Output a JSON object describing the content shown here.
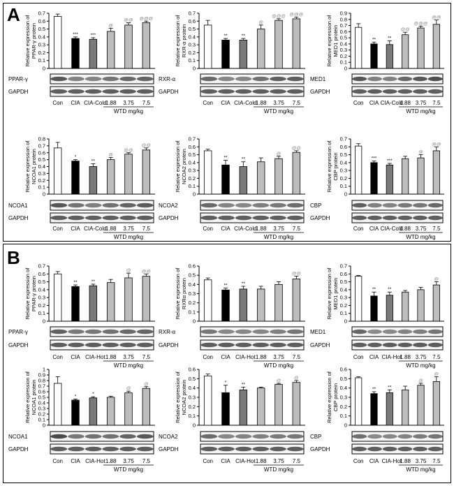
{
  "panels": [
    {
      "letter": "A",
      "treatment_label": "CIA-Cold",
      "charts": [
        {
          "protein": "PPAR-γ",
          "ylabel": "Relative expression of PPAR-γ protein",
          "ylim": [
            0,
            0.7
          ],
          "yticks": [
            "0",
            "0.1",
            "0.2",
            "0.3",
            "0.4",
            "0.5",
            "0.6",
            "0.7"
          ],
          "values": [
            0.66,
            0.38,
            0.37,
            0.47,
            0.55,
            0.58
          ],
          "errors": [
            0.03,
            0.02,
            0.02,
            0.04,
            0.03,
            0.02
          ],
          "marks": [
            "",
            "***",
            "***",
            "@",
            "@@",
            "@@@"
          ]
        },
        {
          "protein": "RXR-α",
          "ylabel": "Relative expression of RXR-α protein",
          "ylim": [
            0,
            0.7
          ],
          "yticks": [
            "0",
            "0.1",
            "0.2",
            "0.3",
            "0.4",
            "0.5",
            "0.6",
            "0.7"
          ],
          "values": [
            0.55,
            0.36,
            0.36,
            0.5,
            0.61,
            0.63
          ],
          "errors": [
            0.06,
            0.02,
            0.02,
            0.05,
            0.02,
            0.02
          ],
          "marks": [
            "",
            "**",
            "**",
            "@",
            "@@@",
            "@@@"
          ]
        },
        {
          "protein": "MED1",
          "ylabel": "Relative expression of MED1 protein",
          "ylim": [
            0,
            0.9
          ],
          "yticks": [
            "0",
            "0.1",
            "0.2",
            "0.3",
            "0.4",
            "0.5",
            "0.6",
            "0.7",
            "0.8",
            "0.9"
          ],
          "values": [
            0.67,
            0.4,
            0.39,
            0.55,
            0.66,
            0.72
          ],
          "errors": [
            0.06,
            0.03,
            0.06,
            0.04,
            0.03,
            0.07
          ],
          "marks": [
            "",
            "**",
            "**",
            "@@",
            "@@@",
            "@@"
          ]
        },
        {
          "protein": "NCOA1",
          "ylabel": "Relative expression of NCOA1 protein",
          "ylim": [
            0,
            0.8
          ],
          "yticks": [
            "0",
            "0.1",
            "0.2",
            "0.3",
            "0.4",
            "0.5",
            "0.6",
            "0.7",
            "0.8"
          ],
          "values": [
            0.67,
            0.48,
            0.4,
            0.5,
            0.58,
            0.64
          ],
          "errors": [
            0.08,
            0.02,
            0.04,
            0.03,
            0.02,
            0.03
          ],
          "marks": [
            "",
            "*",
            "**",
            "@",
            "@@",
            "@@"
          ]
        },
        {
          "protein": "NCOA2",
          "ylabel": "Relative expression of NCOA2 protein",
          "ylim": [
            0,
            0.7
          ],
          "yticks": [
            "0",
            "0.1",
            "0.2",
            "0.3",
            "0.4",
            "0.5",
            "0.6",
            "0.7"
          ],
          "values": [
            0.55,
            0.37,
            0.35,
            0.41,
            0.45,
            0.53
          ],
          "errors": [
            0.02,
            0.06,
            0.06,
            0.05,
            0.03,
            0.02
          ],
          "marks": [
            "",
            "**",
            "**",
            "",
            "@",
            "@@"
          ]
        },
        {
          "protein": "CBP",
          "ylabel": "Relative expression of CBP protein",
          "ylim": [
            0,
            0.7
          ],
          "yticks": [
            "0",
            "0.1",
            "0.2",
            "0.3",
            "0.4",
            "0.5",
            "0.6",
            "0.7"
          ],
          "values": [
            0.61,
            0.4,
            0.37,
            0.45,
            0.46,
            0.55
          ],
          "errors": [
            0.03,
            0.02,
            0.02,
            0.03,
            0.04,
            0.05
          ],
          "marks": [
            "",
            "***",
            "***",
            "",
            "@",
            "@@"
          ]
        }
      ]
    },
    {
      "letter": "B",
      "treatment_label": "CIA-Hot",
      "charts": [
        {
          "protein": "PPAR-γ",
          "ylabel": "Relative expression of PPAR-γ protein",
          "ylim": [
            0,
            0.7
          ],
          "yticks": [
            "0",
            "0.1",
            "0.2",
            "0.3",
            "0.4",
            "0.5",
            "0.6",
            "0.7"
          ],
          "values": [
            0.6,
            0.44,
            0.45,
            0.49,
            0.55,
            0.57
          ],
          "errors": [
            0.03,
            0.02,
            0.02,
            0.04,
            0.06,
            0.03
          ],
          "marks": [
            "",
            "**",
            "**",
            "",
            "@",
            "@@"
          ]
        },
        {
          "protein": "RXR-α",
          "ylabel": "Relative expression of RXRα protein",
          "ylim": [
            0,
            0.6
          ],
          "yticks": [
            "0",
            "0.1",
            "0.2",
            "0.3",
            "0.4",
            "0.5",
            "0.6"
          ],
          "values": [
            0.45,
            0.34,
            0.35,
            0.35,
            0.4,
            0.46
          ],
          "errors": [
            0.02,
            0.02,
            0.03,
            0.03,
            0.03,
            0.03
          ],
          "marks": [
            "",
            "**",
            "**",
            "",
            "",
            "@@"
          ]
        },
        {
          "protein": "MED1",
          "ylabel": "Relative expression of MED1 protein",
          "ylim": [
            0,
            0.7
          ],
          "yticks": [
            "0",
            "0.1",
            "0.2",
            "0.3",
            "0.4",
            "0.5",
            "0.6",
            "0.7"
          ],
          "values": [
            0.57,
            0.32,
            0.33,
            0.37,
            0.4,
            0.46
          ],
          "errors": [
            0.01,
            0.05,
            0.04,
            0.02,
            0.03,
            0.04
          ],
          "marks": [
            "",
            "**",
            "**",
            "",
            "",
            "@"
          ]
        },
        {
          "protein": "NCOA1",
          "ylabel": "Relative expression of NCOA1 protein",
          "ylim": [
            0,
            1
          ],
          "yticks": [
            "0",
            "0.1",
            "0.2",
            "0.3",
            "0.4",
            "0.5",
            "0.6",
            "0.7",
            "0.8",
            "0.9",
            "1"
          ],
          "values": [
            0.75,
            0.45,
            0.49,
            0.5,
            0.58,
            0.66
          ],
          "errors": [
            0.12,
            0.02,
            0.02,
            0.02,
            0.03,
            0.03
          ],
          "marks": [
            "",
            "*",
            "*",
            "",
            "@",
            "@"
          ]
        },
        {
          "protein": "NCOA2",
          "ylabel": "Relative expression of NCOA2 protein",
          "ylim": [
            0,
            0.6
          ],
          "yticks": [
            "0",
            "0.1",
            "0.2",
            "0.3",
            "0.4",
            "0.5",
            "0.6"
          ],
          "values": [
            0.53,
            0.35,
            0.38,
            0.4,
            0.44,
            0.46
          ],
          "errors": [
            0.02,
            0.08,
            0.03,
            0.01,
            0.01,
            0.02
          ],
          "marks": [
            "",
            "*",
            "**",
            "",
            "@",
            "@"
          ]
        },
        {
          "protein": "CBP",
          "ylabel": "Relative expression of CBP protein",
          "ylim": [
            0,
            0.6
          ],
          "yticks": [
            "0",
            "0.1",
            "0.2",
            "0.3",
            "0.4",
            "0.5",
            "0.6"
          ],
          "values": [
            0.51,
            0.34,
            0.35,
            0.38,
            0.43,
            0.47
          ],
          "errors": [
            0.01,
            0.02,
            0.03,
            0.04,
            0.02,
            0.05
          ],
          "marks": [
            "",
            "**",
            "**",
            "",
            "@",
            "@"
          ]
        }
      ]
    }
  ],
  "x_labels": {
    "con": "Con",
    "cia": "CIA",
    "doses": [
      "1.88",
      "3.75",
      "7.5"
    ],
    "group": "WTD mg/kg"
  },
  "gapdh_label": "GAPDH",
  "bar_colors": [
    "#ffffff",
    "#000000",
    "#7a7a7a",
    "#bdbdbd",
    "#bdbdbd",
    "#bdbdbd"
  ],
  "chart_data": [
    {
      "type": "bar",
      "title": "",
      "ylabel": "Relative expression of PPAR-γ protein",
      "categories": [
        "Con",
        "CIA",
        "CIA-Cold",
        "1.88",
        "3.75",
        "7.5"
      ],
      "values": [
        0.66,
        0.38,
        0.37,
        0.47,
        0.55,
        0.58
      ],
      "ylim": [
        0,
        0.7
      ]
    },
    {
      "type": "bar",
      "title": "",
      "ylabel": "Relative expression of RXR-α protein",
      "categories": [
        "Con",
        "CIA",
        "CIA-Cold",
        "1.88",
        "3.75",
        "7.5"
      ],
      "values": [
        0.55,
        0.36,
        0.36,
        0.5,
        0.61,
        0.63
      ],
      "ylim": [
        0,
        0.7
      ]
    },
    {
      "type": "bar",
      "title": "",
      "ylabel": "Relative expression of MED1 protein",
      "categories": [
        "Con",
        "CIA",
        "CIA-Cold",
        "1.88",
        "3.75",
        "7.5"
      ],
      "values": [
        0.67,
        0.4,
        0.39,
        0.55,
        0.66,
        0.72
      ],
      "ylim": [
        0,
        0.9
      ]
    },
    {
      "type": "bar",
      "title": "",
      "ylabel": "Relative expression of NCOA1 protein",
      "categories": [
        "Con",
        "CIA",
        "CIA-Cold",
        "1.88",
        "3.75",
        "7.5"
      ],
      "values": [
        0.67,
        0.48,
        0.4,
        0.5,
        0.58,
        0.64
      ],
      "ylim": [
        0,
        0.8
      ]
    },
    {
      "type": "bar",
      "title": "",
      "ylabel": "Relative expression of NCOA2 protein",
      "categories": [
        "Con",
        "CIA",
        "CIA-Cold",
        "1.88",
        "3.75",
        "7.5"
      ],
      "values": [
        0.55,
        0.37,
        0.35,
        0.41,
        0.45,
        0.53
      ],
      "ylim": [
        0,
        0.7
      ]
    },
    {
      "type": "bar",
      "title": "",
      "ylabel": "Relative expression of CBP protein",
      "categories": [
        "Con",
        "CIA",
        "CIA-Cold",
        "1.88",
        "3.75",
        "7.5"
      ],
      "values": [
        0.61,
        0.4,
        0.37,
        0.45,
        0.46,
        0.55
      ],
      "ylim": [
        0,
        0.7
      ]
    },
    {
      "type": "bar",
      "title": "",
      "ylabel": "Relative expression of PPAR-γ protein",
      "categories": [
        "Con",
        "CIA",
        "CIA-Hot",
        "1.88",
        "3.75",
        "7.5"
      ],
      "values": [
        0.6,
        0.44,
        0.45,
        0.49,
        0.55,
        0.57
      ],
      "ylim": [
        0,
        0.7
      ]
    },
    {
      "type": "bar",
      "title": "",
      "ylabel": "Relative expression of RXRα protein",
      "categories": [
        "Con",
        "CIA",
        "CIA-Hot",
        "1.88",
        "3.75",
        "7.5"
      ],
      "values": [
        0.45,
        0.34,
        0.35,
        0.35,
        0.4,
        0.46
      ],
      "ylim": [
        0,
        0.6
      ]
    },
    {
      "type": "bar",
      "title": "",
      "ylabel": "Relative expression of MED1 protein",
      "categories": [
        "Con",
        "CIA",
        "CIA-Hot",
        "1.88",
        "3.75",
        "7.5"
      ],
      "values": [
        0.57,
        0.32,
        0.33,
        0.37,
        0.4,
        0.46
      ],
      "ylim": [
        0,
        0.7
      ]
    },
    {
      "type": "bar",
      "title": "",
      "ylabel": "Relative expression of NCOA1 protein",
      "categories": [
        "Con",
        "CIA",
        "CIA-Hot",
        "1.88",
        "3.75",
        "7.5"
      ],
      "values": [
        0.75,
        0.45,
        0.49,
        0.5,
        0.58,
        0.66
      ],
      "ylim": [
        0,
        1
      ]
    },
    {
      "type": "bar",
      "title": "",
      "ylabel": "Relative expression of NCOA2 protein",
      "categories": [
        "Con",
        "CIA",
        "CIA-Hot",
        "1.88",
        "3.75",
        "7.5"
      ],
      "values": [
        0.53,
        0.35,
        0.38,
        0.4,
        0.44,
        0.46
      ],
      "ylim": [
        0,
        0.6
      ]
    },
    {
      "type": "bar",
      "title": "",
      "ylabel": "Relative expression of CBP protein",
      "categories": [
        "Con",
        "CIA",
        "CIA-Hot",
        "1.88",
        "3.75",
        "7.5"
      ],
      "values": [
        0.51,
        0.34,
        0.35,
        0.38,
        0.43,
        0.47
      ],
      "ylim": [
        0,
        0.6
      ]
    }
  ]
}
